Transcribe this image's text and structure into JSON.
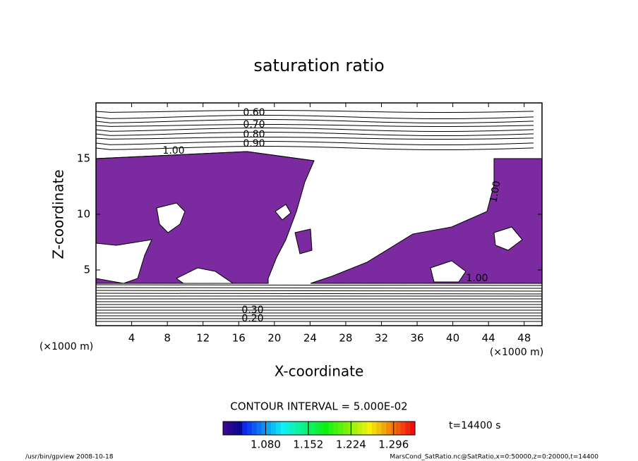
{
  "chart_data": {
    "type": "contour",
    "title": "saturation ratio",
    "x_label": "X-coordinate",
    "y_label": "Z-coordinate",
    "x_unit": "(×1000 m)",
    "xlim": [
      0,
      50
    ],
    "ylim": [
      0,
      20
    ],
    "xticks": [
      4,
      8,
      12,
      16,
      20,
      24,
      28,
      32,
      36,
      40,
      44,
      48
    ],
    "yticks": [
      5,
      10,
      15
    ],
    "fill_color": "#7b2a9f",
    "contour_labels": [
      "0.60",
      "0.70",
      "0.80",
      "0.90",
      "1.00",
      "1.00",
      "1.00",
      "0.30",
      "0.20"
    ],
    "contour_interval": "CONTOUR INTERVAL = 5.000E-02",
    "colorbar": {
      "lim": [
        1.008,
        1.332
      ],
      "ticks": [
        {
          "value": 1.08,
          "label": "1.080"
        },
        {
          "value": 1.152,
          "label": "1.152"
        },
        {
          "value": 1.224,
          "label": "1.224"
        },
        {
          "value": 1.296,
          "label": "1.296"
        }
      ]
    },
    "time_label": "t=14400 s",
    "footer_left": "/usr/bin/gpview   2008-10-18",
    "footer_right": "MarsCond_SatRatio.nc@SatRatio,x=0:50000,z=0:20000,t=14400"
  }
}
